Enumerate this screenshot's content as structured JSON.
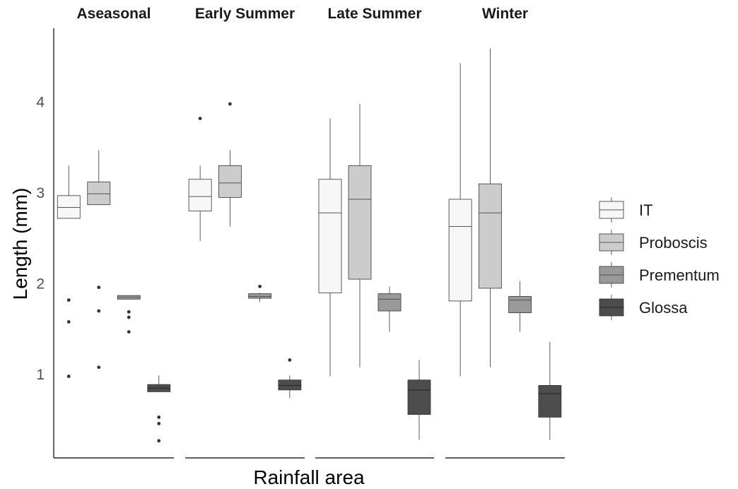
{
  "chart_data": {
    "type": "boxplot",
    "facets": [
      "Aseasonal",
      "Early Summer",
      "Late Summer",
      "Winter"
    ],
    "xlabel": "Rainfall area",
    "ylabel": "Length (mm)",
    "yticks": [
      1,
      2,
      3,
      4
    ],
    "ylim": [
      0.2,
      4.7
    ],
    "legend_position": "right",
    "series": [
      {
        "name": "IT",
        "color": "#f7f7f7",
        "boxes": [
          {
            "facet": "Aseasonal",
            "whisker_low": 2.72,
            "q1": 2.72,
            "median": 2.84,
            "q3": 2.97,
            "whisker_high": 3.3,
            "outliers": [
              1.82,
              1.58,
              0.98
            ]
          },
          {
            "facet": "Early Summer",
            "whisker_low": 2.47,
            "q1": 2.8,
            "median": 2.96,
            "q3": 3.15,
            "whisker_high": 3.3,
            "outliers": [
              3.82
            ]
          },
          {
            "facet": "Late Summer",
            "whisker_low": 0.98,
            "q1": 1.9,
            "median": 2.78,
            "q3": 3.15,
            "whisker_high": 3.82,
            "outliers": []
          },
          {
            "facet": "Winter",
            "whisker_low": 0.98,
            "q1": 1.81,
            "median": 2.63,
            "q3": 2.93,
            "whisker_high": 4.43,
            "outliers": []
          }
        ]
      },
      {
        "name": "Proboscis",
        "color": "#cccccc",
        "boxes": [
          {
            "facet": "Aseasonal",
            "whisker_low": 2.87,
            "q1": 2.87,
            "median": 2.99,
            "q3": 3.12,
            "whisker_high": 3.47,
            "outliers": [
              1.96,
              1.7,
              1.08
            ]
          },
          {
            "facet": "Early Summer",
            "whisker_low": 2.63,
            "q1": 2.95,
            "median": 3.11,
            "q3": 3.3,
            "whisker_high": 3.47,
            "outliers": [
              3.98
            ]
          },
          {
            "facet": "Late Summer",
            "whisker_low": 1.08,
            "q1": 2.05,
            "median": 2.93,
            "q3": 3.3,
            "whisker_high": 3.98,
            "outliers": []
          },
          {
            "facet": "Winter",
            "whisker_low": 1.08,
            "q1": 1.95,
            "median": 2.78,
            "q3": 3.1,
            "whisker_high": 4.59,
            "outliers": []
          }
        ]
      },
      {
        "name": "Prementum",
        "color": "#999999",
        "boxes": [
          {
            "facet": "Aseasonal",
            "whisker_low": 1.83,
            "q1": 1.83,
            "median": 1.85,
            "q3": 1.87,
            "whisker_high": 1.87,
            "outliers": [
              1.69,
              1.63,
              1.47
            ]
          },
          {
            "facet": "Early Summer",
            "whisker_low": 1.8,
            "q1": 1.84,
            "median": 1.86,
            "q3": 1.89,
            "whisker_high": 1.9,
            "outliers": [
              1.97
            ]
          },
          {
            "facet": "Late Summer",
            "whisker_low": 1.47,
            "q1": 1.7,
            "median": 1.83,
            "q3": 1.89,
            "whisker_high": 1.97,
            "outliers": []
          },
          {
            "facet": "Winter",
            "whisker_low": 1.47,
            "q1": 1.68,
            "median": 1.82,
            "q3": 1.86,
            "whisker_high": 2.03,
            "outliers": []
          }
        ]
      },
      {
        "name": "Glossa",
        "color": "#4d4d4d",
        "boxes": [
          {
            "facet": "Aseasonal",
            "whisker_low": 0.81,
            "q1": 0.81,
            "median": 0.85,
            "q3": 0.89,
            "whisker_high": 0.99,
            "outliers": [
              0.53,
              0.46,
              0.27
            ]
          },
          {
            "facet": "Early Summer",
            "whisker_low": 0.74,
            "q1": 0.83,
            "median": 0.88,
            "q3": 0.94,
            "whisker_high": 0.99,
            "outliers": [
              1.16
            ]
          },
          {
            "facet": "Late Summer",
            "whisker_low": 0.28,
            "q1": 0.56,
            "median": 0.83,
            "q3": 0.94,
            "whisker_high": 1.16,
            "outliers": []
          },
          {
            "facet": "Winter",
            "whisker_low": 0.28,
            "q1": 0.53,
            "median": 0.79,
            "q3": 0.88,
            "whisker_high": 1.36,
            "outliers": []
          }
        ]
      }
    ]
  }
}
